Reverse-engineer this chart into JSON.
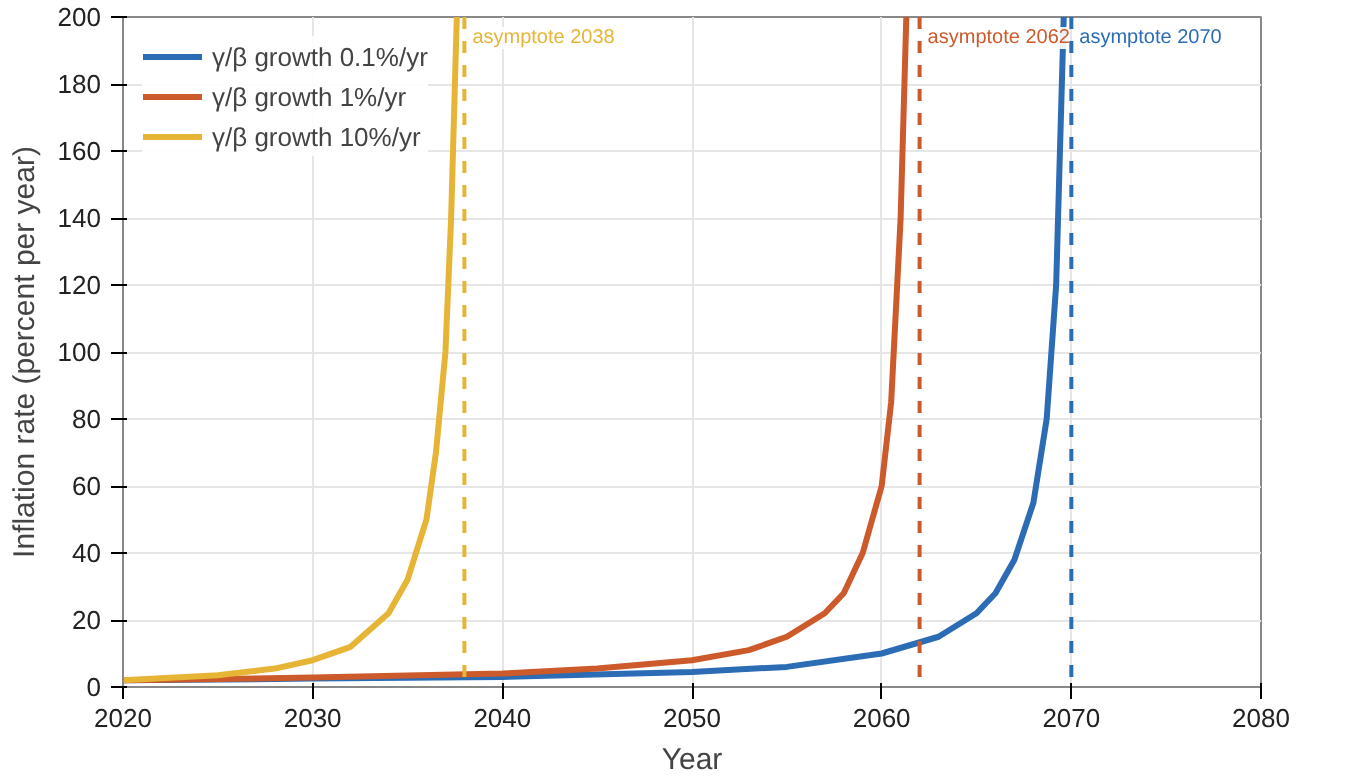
{
  "chart_data": {
    "type": "line",
    "xlabel": "Year",
    "ylabel": "Inflation rate (percent per year)",
    "xlim": [
      2020,
      2080
    ],
    "ylim": [
      0,
      200
    ],
    "xticks": [
      2020,
      2030,
      2040,
      2050,
      2060,
      2070,
      2080
    ],
    "yticks": [
      0,
      20,
      40,
      60,
      80,
      100,
      120,
      140,
      160,
      180,
      200
    ],
    "grid": true,
    "legend": "top left",
    "line_style": "solid",
    "marker": "none",
    "series": [
      {
        "name": "γ/β growth 0.1%/yr",
        "color": "#2b6cb5",
        "x": [
          2020,
          2030,
          2040,
          2050,
          2055,
          2060,
          2063,
          2065,
          2066,
          2067,
          2068,
          2068.7,
          2069.2,
          2069.6
        ],
        "values": [
          2,
          2.5,
          3,
          4.5,
          6,
          10,
          15,
          22,
          28,
          38,
          55,
          80,
          120,
          200
        ]
      },
      {
        "name": "γ/β growth 1%/yr",
        "color": "#cc5a2a",
        "x": [
          2020,
          2030,
          2040,
          2045,
          2050,
          2053,
          2055,
          2057,
          2058,
          2059,
          2060,
          2060.5,
          2061,
          2061.3
        ],
        "values": [
          2,
          2.8,
          4,
          5.5,
          8,
          11,
          15,
          22,
          28,
          40,
          60,
          85,
          140,
          200
        ]
      },
      {
        "name": "γ/β growth 10%/yr",
        "color": "#e6b535",
        "x": [
          2020,
          2025,
          2028,
          2030,
          2032,
          2034,
          2035,
          2036,
          2036.5,
          2037,
          2037.3,
          2037.6
        ],
        "values": [
          2,
          3.5,
          5.5,
          8,
          12,
          22,
          32,
          50,
          70,
          100,
          140,
          200
        ]
      }
    ],
    "ref_lines": [
      {
        "axis": "x",
        "value": 2038,
        "label": "asymptote 2038",
        "color": "#e6b535",
        "line_style": "dashed"
      },
      {
        "axis": "x",
        "value": 2062,
        "label": "asymptote 2062",
        "color": "#cc5a2a",
        "line_style": "dashed"
      },
      {
        "axis": "x",
        "value": 2070,
        "label": "asymptote 2070",
        "color": "#2b6cb5",
        "line_style": "dashed"
      }
    ]
  }
}
